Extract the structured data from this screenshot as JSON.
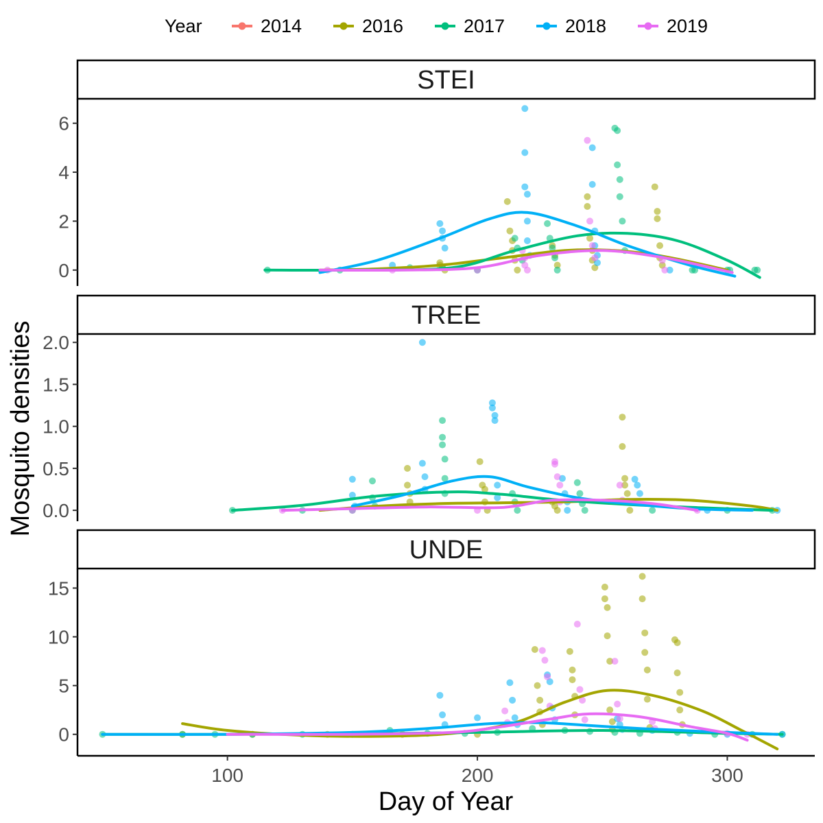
{
  "chart_data": {
    "type": "scatter",
    "legend": {
      "title": "Year",
      "position": "top"
    },
    "xlabel": "Day of Year",
    "ylabel": "Mosquito densities",
    "xlim": [
      40,
      335
    ],
    "xticks": [
      100,
      200,
      300
    ],
    "series_colors": {
      "2014": "#F8766D",
      "2016": "#A3A500",
      "2017": "#00BF7D",
      "2018": "#00B0F6",
      "2019": "#E76BF3"
    },
    "series_names": [
      "2014",
      "2016",
      "2017",
      "2018",
      "2019"
    ],
    "panels": [
      {
        "label": "STEI",
        "ylim": [
          -0.65,
          7.0
        ],
        "yticks": [
          0,
          2,
          4,
          6
        ],
        "smooth": [
          {
            "name": "2016",
            "x": [
              137,
              160,
              185,
              210,
              235,
              255,
              275,
              300
            ],
            "y": [
              0,
              0.05,
              0.2,
              0.5,
              0.8,
              0.8,
              0.55,
              0.0
            ]
          },
          {
            "name": "2017",
            "x": [
              115,
              150,
              190,
              215,
              240,
              260,
              280,
              300,
              313
            ],
            "y": [
              0,
              0,
              0.1,
              0.8,
              1.4,
              1.5,
              1.2,
              0.4,
              -0.3
            ]
          },
          {
            "name": "2018",
            "x": [
              137,
              160,
              185,
              205,
              220,
              240,
              260,
              285,
              303
            ],
            "y": [
              -0.1,
              0.4,
              1.3,
              2.1,
              2.35,
              1.8,
              1.0,
              0.2,
              -0.25
            ]
          },
          {
            "name": "2019",
            "x": [
              137,
              170,
              200,
              225,
              250,
              275,
              302
            ],
            "y": [
              0,
              0,
              0.1,
              0.6,
              0.8,
              0.5,
              -0.1
            ]
          }
        ],
        "points": [
          {
            "name": "2016",
            "x": [
              185,
              185,
              186,
              187,
              212,
              213,
              214,
              214,
              215,
              216,
              230,
              231,
              232,
              244,
              244,
              245,
              246,
              246,
              247,
              271,
              272,
              272,
              273,
              273,
              274
            ],
            "y": [
              0.3,
              0.2,
              0.1,
              0.0,
              2.8,
              1.6,
              1.2,
              0.8,
              0.4,
              0.0,
              1.0,
              0.6,
              0.2,
              3.0,
              2.6,
              1.3,
              0.8,
              0.4,
              0.1,
              3.4,
              2.4,
              2.1,
              1.0,
              0.5,
              0.2
            ]
          },
          {
            "name": "2017",
            "x": [
              116,
              145,
              173,
              186,
              200,
              215,
              216,
              218,
              228,
              229,
              230,
              231,
              232,
              255,
              256,
              256,
              257,
              257,
              258,
              259,
              286,
              287,
              300,
              301,
              311,
              312
            ],
            "y": [
              0,
              0,
              0.1,
              0.1,
              0,
              1.3,
              0.9,
              0.4,
              1.9,
              1.3,
              0.9,
              0.5,
              0.0,
              5.8,
              5.7,
              4.3,
              3.7,
              3.0,
              2.0,
              0.8,
              0,
              0,
              0,
              0,
              0,
              0
            ]
          },
          {
            "name": "2018",
            "x": [
              166,
              185,
              186,
              186,
              187,
              219,
              219,
              219,
              220,
              220,
              220,
              221,
              246,
              246,
              247,
              247,
              248,
              248,
              277
            ],
            "y": [
              0.2,
              1.9,
              1.6,
              1.3,
              0.9,
              6.6,
              4.8,
              3.4,
              3.1,
              2.0,
              1.2,
              0.6,
              5.0,
              3.5,
              1.6,
              1.0,
              0.6,
              0.3,
              0.0
            ]
          },
          {
            "name": "2019",
            "x": [
              140,
              166,
              200,
              218,
              219,
              219,
              220,
              244,
              245,
              246,
              247,
              274,
              275
            ],
            "y": [
              0,
              0,
              0,
              0.8,
              0.5,
              0.2,
              0.0,
              5.3,
              2.0,
              1.0,
              0.5,
              0.4,
              0.0
            ]
          }
        ]
      },
      {
        "label": "TREE",
        "ylim": [
          -0.13,
          2.1
        ],
        "yticks": [
          0.0,
          0.5,
          1.0,
          1.5,
          2.0
        ],
        "smooth": [
          {
            "name": "2016",
            "x": [
              137,
              160,
              185,
              210,
              235,
              260,
              285,
              310,
              320
            ],
            "y": [
              0,
              0.05,
              0.08,
              0.09,
              0.1,
              0.13,
              0.12,
              0.05,
              0.0
            ]
          },
          {
            "name": "2017",
            "x": [
              102,
              130,
              160,
              190,
              210,
              230,
              260,
              290,
              318
            ],
            "y": [
              0,
              0.06,
              0.17,
              0.22,
              0.19,
              0.13,
              0.07,
              0.03,
              0.0
            ]
          },
          {
            "name": "2018",
            "x": [
              150,
              170,
              190,
              205,
              220,
              240,
              260,
              285,
              310
            ],
            "y": [
              0.05,
              0.18,
              0.35,
              0.4,
              0.28,
              0.15,
              0.08,
              0.02,
              0.0
            ]
          },
          {
            "name": "2019",
            "x": [
              122,
              150,
              180,
              205,
              215,
              230,
              250,
              270,
              288
            ],
            "y": [
              0,
              0.02,
              0.04,
              0.03,
              0.05,
              0.12,
              0.12,
              0.08,
              0.0
            ]
          }
        ],
        "points": [
          {
            "name": "2016",
            "x": [
              172,
              172,
              173,
              173,
              201,
              202,
              203,
              203,
              204,
              230,
              231,
              232,
              258,
              258,
              259,
              259,
              260,
              260,
              261
            ],
            "y": [
              0.5,
              0.3,
              0.2,
              0.1,
              0.58,
              0.3,
              0.25,
              0.1,
              0.0,
              0.1,
              0.05,
              0.0,
              1.11,
              0.76,
              0.38,
              0.3,
              0.2,
              0.1,
              0.0
            ]
          },
          {
            "name": "2017",
            "x": [
              102,
              130,
              150,
              158,
              158,
              159,
              186,
              186,
              186,
              187,
              187,
              187,
              214,
              215,
              216,
              240,
              241,
              242,
              243,
              270,
              300,
              318
            ],
            "y": [
              0,
              0,
              0,
              0.35,
              0.15,
              0.05,
              1.07,
              0.87,
              0.78,
              0.61,
              0.38,
              0.2,
              0.2,
              0.1,
              0.0,
              0.33,
              0.2,
              0.08,
              0.0,
              0.0,
              0,
              0
            ]
          },
          {
            "name": "2018",
            "x": [
              150,
              150,
              151,
              178,
              178,
              179,
              179,
              206,
              206,
              207,
              207,
              208,
              208,
              234,
              235,
              236,
              236,
              263,
              264,
              265,
              292,
              320
            ],
            "y": [
              0.37,
              0.18,
              0.05,
              2.0,
              0.56,
              0.4,
              0.25,
              1.28,
              1.22,
              1.13,
              1.07,
              0.3,
              0.15,
              0.38,
              0.2,
              0.1,
              0.0,
              0.37,
              0.3,
              0.2,
              0,
              0
            ]
          },
          {
            "name": "2019",
            "x": [
              122,
              150,
              200,
              231,
              231,
              232,
              233,
              233,
              257,
              258,
              288
            ],
            "y": [
              0,
              0,
              0,
              0.58,
              0.55,
              0.4,
              0.3,
              0.1,
              0.3,
              0.12,
              0
            ]
          }
        ]
      },
      {
        "label": "UNDE",
        "ylim": [
          -2.2,
          17.0
        ],
        "yticks": [
          0,
          5,
          10,
          15
        ],
        "smooth": [
          {
            "name": "2016",
            "x": [
              82,
              100,
              130,
              160,
              190,
              215,
              235,
              252,
              270,
              290,
              305,
              320
            ],
            "y": [
              1.1,
              0.4,
              -0.1,
              -0.2,
              0.1,
              1.2,
              3.3,
              4.5,
              4.0,
              2.4,
              0.5,
              -1.5
            ]
          },
          {
            "name": "2017",
            "x": [
              50,
              100,
              150,
              200,
              250,
              300,
              322
            ],
            "y": [
              0,
              0,
              0.05,
              0.2,
              0.4,
              0.1,
              0.0
            ]
          },
          {
            "name": "2018",
            "x": [
              50,
              100,
              150,
              180,
              205,
              225,
              245,
              265,
              290,
              320
            ],
            "y": [
              0,
              0,
              0.2,
              0.6,
              1.1,
              1.2,
              0.9,
              0.6,
              0.3,
              0.0
            ]
          },
          {
            "name": "2019",
            "x": [
              100,
              150,
              190,
              210,
              230,
              245,
              265,
              285,
              300,
              308
            ],
            "y": [
              0,
              0,
              0.2,
              0.8,
              1.6,
              2.1,
              1.8,
              0.8,
              0.1,
              -0.6
            ]
          }
        ],
        "points": [
          {
            "name": "2016",
            "x": [
              82,
              110,
              140,
              170,
              200,
              223,
              224,
              225,
              225,
              226,
              237,
              238,
              238,
              239,
              239,
              251,
              251,
              252,
              252,
              253,
              253,
              254,
              254,
              266,
              266,
              267,
              267,
              268,
              268,
              269,
              279,
              280,
              280,
              281,
              281,
              282
            ],
            "y": [
              0,
              0,
              0,
              0,
              0,
              8.7,
              5.0,
              3.5,
              2.3,
              1.0,
              8.5,
              6.6,
              5.6,
              3.9,
              2.0,
              15.1,
              13.9,
              13.0,
              10.1,
              7.5,
              2.5,
              1.3,
              0.5,
              16.2,
              13.9,
              10.4,
              8.4,
              6.6,
              3.6,
              0.7,
              9.7,
              9.4,
              6.3,
              4.3,
              2.5,
              1.0
            ]
          },
          {
            "name": "2017",
            "x": [
              50,
              82,
              95,
              110,
              130,
              150,
              165,
              180,
              195,
              208,
              222,
              235,
              245,
              255,
              265,
              280,
              295,
              310,
              322
            ],
            "y": [
              0,
              0,
              0,
              0,
              0,
              0,
              0.4,
              0.1,
              0.1,
              0.2,
              0.6,
              0.4,
              0.3,
              0.2,
              0.1,
              0.2,
              0,
              0,
              0
            ]
          },
          {
            "name": "2018",
            "x": [
              185,
              186,
              187,
              200,
              213,
              214,
              215,
              216,
              228,
              229,
              230,
              231,
              256,
              257,
              258,
              270,
              285,
              300,
              322
            ],
            "y": [
              4.0,
              2.0,
              1.0,
              1.7,
              5.3,
              3.5,
              1.7,
              1.0,
              6.1,
              5.4,
              2.7,
              1.5,
              1.6,
              1.0,
              0.5,
              0.4,
              0.1,
              0,
              0
            ]
          },
          {
            "name": "2019",
            "x": [
              211,
              212,
              226,
              227,
              228,
              229,
              240,
              241,
              242,
              243,
              255,
              256,
              257,
              270,
              271,
              300,
              308
            ],
            "y": [
              2.4,
              1.2,
              8.6,
              7.6,
              5.9,
              2.9,
              11.3,
              4.6,
              3.5,
              1.5,
              7.5,
              3.1,
              1.6,
              1.3,
              0.6,
              0.1,
              0
            ]
          }
        ]
      }
    ]
  }
}
